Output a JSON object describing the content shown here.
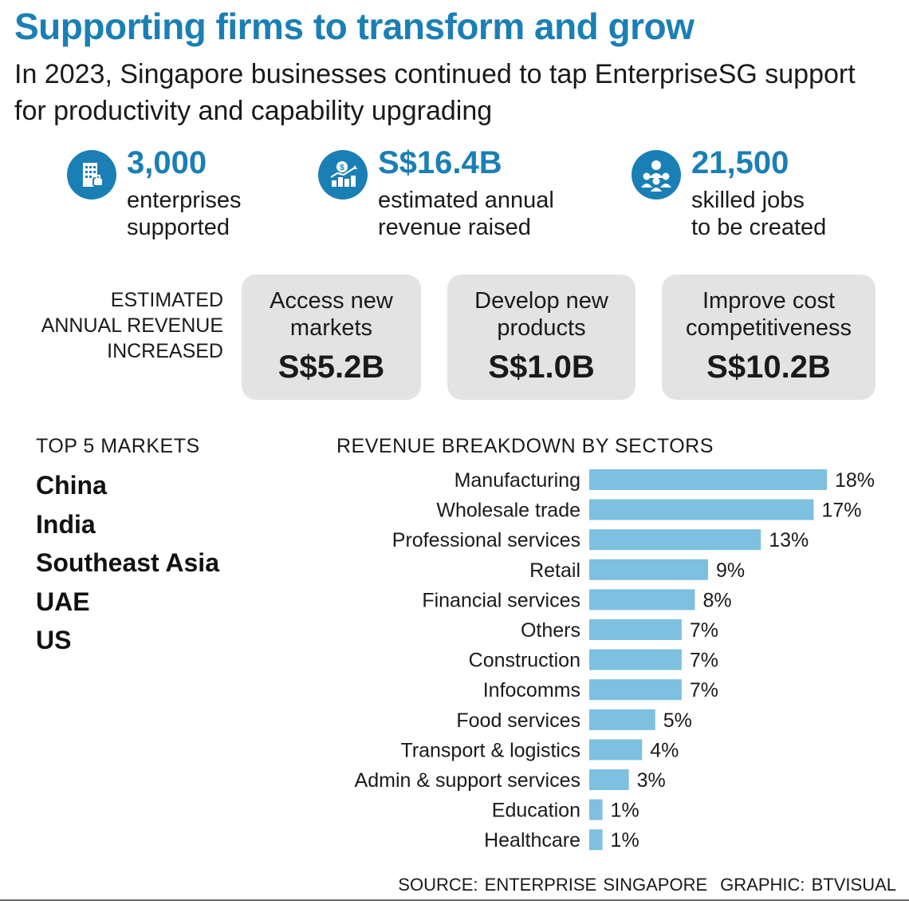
{
  "header": {
    "title": "Supporting firms to transform and grow",
    "subtitle": "In 2023, Singapore businesses continued to tap EnterpriseSG support for productivity and capability upgrading"
  },
  "stats": [
    {
      "icon": "building-icon",
      "value": "3,000",
      "line1": "enterprises",
      "line2": "supported"
    },
    {
      "icon": "revenue-chart-icon",
      "value": "S$16.4B",
      "line1": "estimated annual",
      "line2": "revenue raised"
    },
    {
      "icon": "people-icon",
      "value": "21,500",
      "line1": "skilled jobs",
      "line2": "to be created"
    }
  ],
  "revenue_increase": {
    "label_lines": [
      "ESTIMATED",
      "ANNUAL REVENUE",
      "INCREASED"
    ],
    "boxes": [
      {
        "line1": "Access new",
        "line2": "markets",
        "value": "S$5.2B"
      },
      {
        "line1": "Develop new",
        "line2": "products",
        "value": "S$1.0B"
      },
      {
        "line1": "Improve cost",
        "line2": "competitiveness",
        "value": "S$10.2B"
      }
    ]
  },
  "markets": {
    "heading": "TOP 5 MARKETS",
    "items": [
      "China",
      "India",
      "Southeast Asia",
      "UAE",
      "US"
    ]
  },
  "chart_data": {
    "type": "bar",
    "orientation": "horizontal",
    "title": "REVENUE BREAKDOWN BY SECTORS",
    "unit": "%",
    "categories": [
      "Manufacturing",
      "Wholesale trade",
      "Professional services",
      "Retail",
      "Financial services",
      "Others",
      "Construction",
      "Infocomms",
      "Food services",
      "Transport & logistics",
      "Admin & support services",
      "Education",
      "Healthcare"
    ],
    "values": [
      18,
      17,
      13,
      9,
      8,
      7,
      7,
      7,
      5,
      4,
      3,
      1,
      1
    ],
    "xlim": [
      0,
      18
    ],
    "grid": false,
    "bar_color": "#7dc0e0"
  },
  "footer": {
    "source": "SOURCE: ENTERPRISE SINGAPORE",
    "graphic": "GRAPHIC: BTVISUAL"
  }
}
